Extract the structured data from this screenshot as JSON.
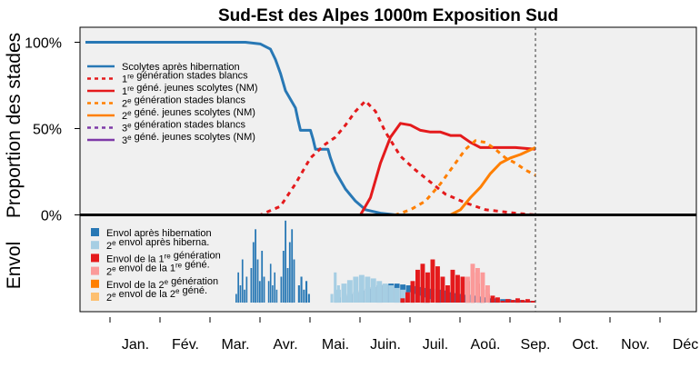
{
  "chart_data": {
    "type": "line",
    "title": "Sud-Est des Alpes 1000m Exposition Sud",
    "upper_panel": {
      "ylabel": "Proportion des stades",
      "yticks": [
        {
          "value": 1.0,
          "label": "100%"
        },
        {
          "value": 0.5,
          "label": "50%"
        },
        {
          "value": 0.0,
          "label": "0%"
        }
      ],
      "ylim": [
        0,
        1.05
      ],
      "series": [
        {
          "name": "Scolytes après hibernation",
          "color": "#2878b5",
          "style": "solid",
          "x": [
            0.0,
            3.0,
            3.2,
            3.5,
            3.7,
            3.8,
            3.9,
            4.0,
            4.2,
            4.25,
            4.3,
            4.5,
            4.55,
            4.6,
            4.85,
            4.9,
            5.0,
            5.2,
            5.4,
            5.6,
            5.9,
            6.2,
            9.0
          ],
          "y": [
            1.0,
            1.0,
            1.0,
            0.99,
            0.96,
            0.9,
            0.82,
            0.72,
            0.62,
            0.55,
            0.49,
            0.49,
            0.44,
            0.38,
            0.38,
            0.33,
            0.25,
            0.15,
            0.08,
            0.03,
            0.01,
            0.0,
            0.0
          ]
        },
        {
          "name": "1re génération stades blancs",
          "color": "#e41a1c",
          "style": "dashed",
          "x": [
            0.0,
            3.5,
            3.9,
            4.2,
            4.5,
            4.8,
            5.0,
            5.2,
            5.4,
            5.6,
            5.8,
            6.0,
            6.3,
            6.6,
            6.9,
            7.2,
            7.6,
            8.0,
            8.3,
            8.6,
            9.0
          ],
          "y": [
            0.0,
            0.0,
            0.05,
            0.18,
            0.33,
            0.41,
            0.45,
            0.52,
            0.6,
            0.66,
            0.6,
            0.48,
            0.34,
            0.26,
            0.19,
            0.12,
            0.07,
            0.03,
            0.02,
            0.01,
            0.0
          ]
        },
        {
          "name": "1re géné. jeunes scolytes (NM)",
          "color": "#e41a1c",
          "style": "solid",
          "x": [
            0.0,
            5.5,
            5.7,
            5.9,
            6.1,
            6.3,
            6.5,
            6.7,
            6.9,
            7.1,
            7.3,
            7.5,
            7.7,
            7.9,
            8.1,
            8.3,
            8.6,
            9.0
          ],
          "y": [
            0.0,
            0.0,
            0.1,
            0.3,
            0.45,
            0.53,
            0.52,
            0.49,
            0.48,
            0.48,
            0.46,
            0.46,
            0.42,
            0.39,
            0.39,
            0.39,
            0.39,
            0.38
          ]
        },
        {
          "name": "2e génération stades blancs",
          "color": "#ff7f00",
          "style": "dashed",
          "x": [
            0.0,
            6.2,
            6.5,
            6.8,
            7.1,
            7.4,
            7.6,
            7.8,
            8.0,
            8.2,
            8.4,
            8.6,
            8.8,
            9.0
          ],
          "y": [
            0.0,
            0.0,
            0.03,
            0.08,
            0.18,
            0.3,
            0.38,
            0.43,
            0.42,
            0.38,
            0.33,
            0.3,
            0.26,
            0.23
          ]
        },
        {
          "name": "2e géné. jeunes scolytes (NM)",
          "color": "#ff7f00",
          "style": "solid",
          "x": [
            0.0,
            7.3,
            7.5,
            7.7,
            7.9,
            8.1,
            8.3,
            8.5,
            8.7,
            9.0
          ],
          "y": [
            0.0,
            0.0,
            0.03,
            0.1,
            0.16,
            0.24,
            0.3,
            0.33,
            0.35,
            0.39
          ]
        },
        {
          "name": "3e génération stades blancs",
          "color": "#7e3aa8",
          "style": "dashed",
          "x": [
            0.0,
            9.0
          ],
          "y": [
            0.0,
            0.0
          ]
        },
        {
          "name": "3e géné. jeunes scolytes (NM)",
          "color": "#7e3aa8",
          "style": "solid",
          "x": [
            0.0,
            9.0
          ],
          "y": [
            0.0,
            0.0
          ]
        }
      ]
    },
    "lower_panel": {
      "ylabel": "Envol",
      "type": "bar",
      "series": [
        {
          "name": "Envol après hibernation",
          "color": "#2878b5",
          "groups": [
            {
              "x0": 3.0,
              "x1": 3.25,
              "heights": [
                0.1,
                0.35,
                0.2,
                0.5,
                0.15,
                0.3
              ]
            },
            {
              "x0": 3.3,
              "x1": 3.6,
              "heights": [
                0.4,
                0.7,
                0.85,
                0.5,
                0.25,
                0.6,
                0.3
              ]
            },
            {
              "x0": 3.65,
              "x1": 3.85,
              "heights": [
                0.25,
                0.45,
                0.2,
                0.35,
                0.15
              ]
            },
            {
              "x0": 3.9,
              "x1": 4.2,
              "heights": [
                0.3,
                0.6,
                0.95,
                0.4,
                0.7,
                0.85,
                0.5
              ]
            },
            {
              "x0": 4.25,
              "x1": 4.5,
              "heights": [
                0.2,
                0.3,
                0.15,
                0.25,
                0.1
              ]
            },
            {
              "x0": 5.0,
              "x1": 9.0,
              "heights": [
                0.06,
                0.08,
                0.1,
                0.12,
                0.14,
                0.16,
                0.18,
                0.2,
                0.21,
                0.22,
                0.22,
                0.21,
                0.2,
                0.19,
                0.18,
                0.17,
                0.16,
                0.15,
                0.14,
                0.12,
                0.11,
                0.1,
                0.09,
                0.08,
                0.07,
                0.06,
                0.05,
                0.05,
                0.04,
                0.04,
                0.03,
                0.03,
                0.02,
                0.02
              ]
            }
          ]
        },
        {
          "name": "2e envol après hiberna.",
          "color": "#a6cee3",
          "groups": [
            {
              "x0": 4.9,
              "x1": 5.1,
              "heights": [
                0.1,
                0.35,
                0.2
              ]
            },
            {
              "x0": 5.0,
              "x1": 7.0,
              "heights": [
                0.15,
                0.22,
                0.26,
                0.3,
                0.32,
                0.3,
                0.28,
                0.25,
                0.22,
                0.2,
                0.17,
                0.15,
                0.12,
                0.1,
                0.08,
                0.06,
                0.04
              ]
            }
          ]
        },
        {
          "name": "Envol de la 1re génération",
          "color": "#e41a1c",
          "groups": [
            {
              "x0": 6.3,
              "x1": 8.3,
              "heights": [
                0.05,
                0.12,
                0.25,
                0.38,
                0.45,
                0.35,
                0.5,
                0.42,
                0.3,
                0.2,
                0.38,
                0.32,
                0.3,
                0.25,
                0.35,
                0.22,
                0.15,
                0.1,
                0.08,
                0.06
              ]
            },
            {
              "x0": 8.3,
              "x1": 9.0,
              "heights": [
                0.02,
                0.04,
                0.03,
                0.05,
                0.03,
                0.04,
                0.02
              ]
            }
          ]
        },
        {
          "name": "2e envol de la 1re géné.",
          "color": "#fb9a99",
          "groups": [
            {
              "x0": 7.6,
              "x1": 8.1,
              "heights": [
                0.3,
                0.45,
                0.4,
                0.35,
                0.2
              ]
            }
          ]
        },
        {
          "name": "Envol de la 2e génération",
          "color": "#ff7f00",
          "groups": []
        },
        {
          "name": "2e envol de la 2e géné.",
          "color": "#fdbf6f",
          "groups": []
        }
      ]
    },
    "x_axis": {
      "unit": "months",
      "xlim": [
        0,
        12
      ],
      "tick_labels": [
        "Jan.",
        "Fév.",
        "Mar.",
        "Avr.",
        "Mai.",
        "Juin.",
        "Juil.",
        "Aoû.",
        "Sep.",
        "Oct.",
        "Nov.",
        "Déc"
      ],
      "current_date_marker": 9.0
    },
    "legend_upper": "top-left",
    "legend_lower": "bottom-left",
    "grid": false
  }
}
